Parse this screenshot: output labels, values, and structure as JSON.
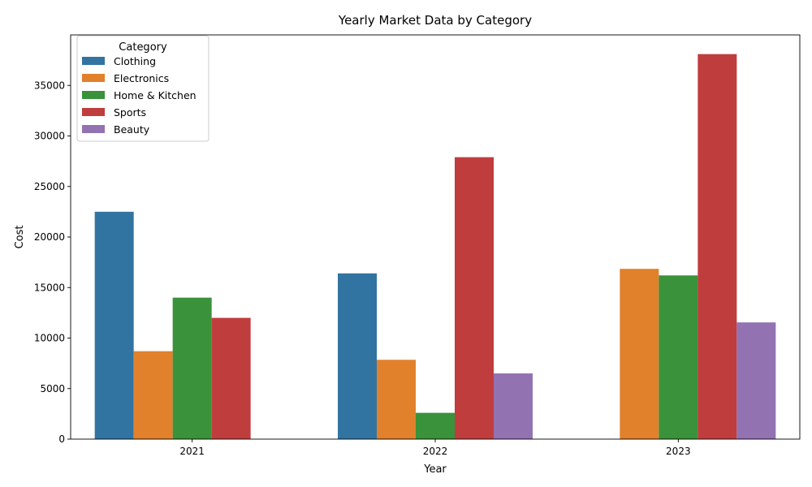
{
  "chart_data": {
    "type": "bar",
    "title": "Yearly Market Data by Category",
    "xlabel": "Year",
    "ylabel": "Cost",
    "categories": [
      "2021",
      "2022",
      "2023"
    ],
    "series": [
      {
        "name": "Clothing",
        "color": "#3274a1",
        "values": [
          22500,
          16400,
          null
        ]
      },
      {
        "name": "Electronics",
        "color": "#e1812c",
        "values": [
          8700,
          7850,
          16850
        ]
      },
      {
        "name": "Home & Kitchen",
        "color": "#3a923a",
        "values": [
          14000,
          2600,
          16200
        ]
      },
      {
        "name": "Sports",
        "color": "#c03d3e",
        "values": [
          12000,
          27900,
          38100
        ]
      },
      {
        "name": "Beauty",
        "color": "#9372b2",
        "values": [
          null,
          6500,
          11550
        ]
      }
    ],
    "ylim": [
      0,
      40000
    ],
    "yticks": [
      0,
      5000,
      10000,
      15000,
      20000,
      25000,
      30000,
      35000
    ],
    "ytick_labels": [
      "0",
      "5000",
      "10000",
      "15000",
      "20000",
      "25000",
      "30000",
      "35000"
    ],
    "grid": false,
    "legend": {
      "title": "Category",
      "placement": "top-left"
    }
  }
}
